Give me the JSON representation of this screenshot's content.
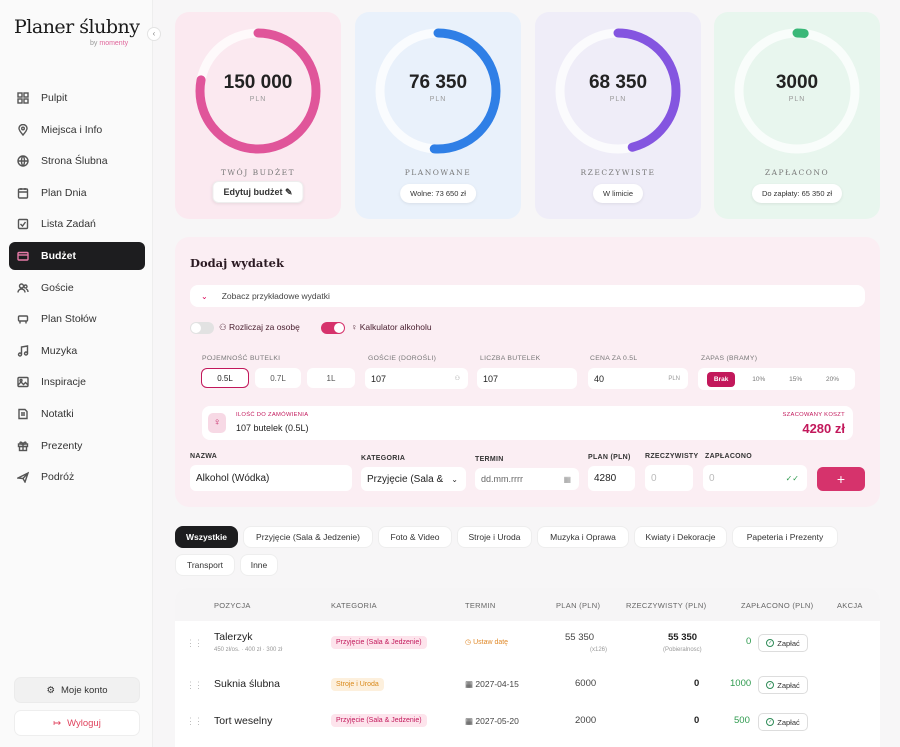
{
  "sidebar": {
    "logo": "Planer ślubny",
    "logo_by": "by",
    "logo_brand": "momenty",
    "collapse_icon": "‹",
    "items": [
      {
        "label": "Pulpit",
        "icon": "dashboard-icon"
      },
      {
        "label": "Miejsca i Info",
        "icon": "location-pin-icon"
      },
      {
        "label": "Strona Ślubna",
        "icon": "globe-icon"
      },
      {
        "label": "Plan Dnia",
        "icon": "calendar-icon"
      },
      {
        "label": "Lista Zadań",
        "icon": "checklist-icon"
      },
      {
        "label": "Budżet",
        "icon": "wallet-icon",
        "active": true
      },
      {
        "label": "Goście",
        "icon": "users-icon"
      },
      {
        "label": "Plan Stołów",
        "icon": "table-icon"
      },
      {
        "label": "Muzyka",
        "icon": "music-note-icon"
      },
      {
        "label": "Inspiracje",
        "icon": "image-icon"
      },
      {
        "label": "Notatki",
        "icon": "note-icon"
      },
      {
        "label": "Prezenty",
        "icon": "gift-icon"
      },
      {
        "label": "Podróż",
        "icon": "plane-icon"
      }
    ],
    "account_label": "Moje konto",
    "logout_label": "Wyloguj"
  },
  "cards": [
    {
      "value": "150 000",
      "unit": "PLN",
      "label": "TWÓJ BUDŻET",
      "pill": "Edytuj budżet",
      "color": "#e0559a",
      "bg": "#fbe9f0",
      "fraction": 0.78
    },
    {
      "value": "76 350",
      "unit": "PLN",
      "label": "PLANOWANE",
      "pill": "Wolne: 73 650 zł",
      "color": "#2f7fe6",
      "bg": "#e9f1fb",
      "fraction": 0.51
    },
    {
      "value": "68 350",
      "unit": "PLN",
      "label": "RZECZYWISTE",
      "pill": "W limicie",
      "color": "#8455e0",
      "bg": "#efedf8",
      "fraction": 0.46
    },
    {
      "value": "3000",
      "unit": "PLN",
      "label": "ZAPŁACONO",
      "pill": "Do zapłaty: 65 350 zł",
      "color": "#3ab878",
      "bg": "#e8f6ee",
      "fraction": 0.02
    }
  ],
  "form": {
    "title": "Dodaj wydatek",
    "examples_label": "Zobacz przykładowe wydatki",
    "per_person_label": "Rozliczaj za osobę",
    "alcohol_label": "Kalkulator alkoholu",
    "bottle_size_label": "POJEMNOŚĆ BUTELKI",
    "bottle_sizes": [
      "0.5L",
      "0.7L",
      "1L"
    ],
    "guests_label": "GOŚCIE (DOROŚLI)",
    "guests_value": "107",
    "bottles_label": "LICZBA BUTELEK",
    "bottles_value": "107",
    "price_label": "CENA ZA 0.5L",
    "price_value": "40",
    "price_unit": "PLN",
    "reserve_label": "ZAPAS (BRAMY)",
    "reserve_options": [
      "Brak",
      "10%",
      "15%",
      "20%"
    ],
    "order_small": "ILOŚĆ DO ZAMÓWIENIA",
    "order_value": "107 butelek (0.5L)",
    "cost_small": "SZACOWANY KOSZT",
    "cost_value": "4280 zł",
    "name_label": "NAZWA",
    "name_value": "Alkohol (Wódka)",
    "category_label": "KATEGORIA",
    "category_value": "Przyjęcie (Sala &",
    "term_label": "TERMIN",
    "term_placeholder": "dd.mm.rrrr",
    "plan_label": "PLAN (PLN)",
    "plan_value": "4280",
    "actual_label": "RZECZYWISTY",
    "actual_placeholder": "0",
    "paid_label": "ZAPŁACONO",
    "paid_placeholder": "0",
    "add_label": "+"
  },
  "filters": [
    "Wszystkie",
    "Przyjęcie (Sala & Jedzenie)",
    "Foto & Video",
    "Stroje i Uroda",
    "Muzyka i Oprawa",
    "Kwiaty i Dekoracje",
    "Papeteria i Prezenty",
    "Transport",
    "Inne"
  ],
  "table": {
    "headers": [
      "POZYCJA",
      "KATEGORIA",
      "TERMIN",
      "PLAN (PLN)",
      "RZECZYWISTY (PLN)",
      "ZAPŁACONO (PLN)",
      "AKCJA"
    ],
    "rows": [
      {
        "name": "Talerzyk",
        "sub": "450 zł/os. · 400 zł · 300 zł",
        "category": "Przyjęcie (Sala & Jedzenie)",
        "cat_style": "pink",
        "term": "Ustaw datę",
        "plan": "55 350",
        "plan_sub": "(x126)",
        "actual": "55 350",
        "actual_sub": "(Pobieralnosc)",
        "paid": "0",
        "pay": "Zapłać"
      },
      {
        "name": "Suknia ślubna",
        "sub": "",
        "category": "Stroje i Uroda",
        "cat_style": "orange",
        "term": "2027-04-15",
        "plan": "6000",
        "plan_sub": "",
        "actual": "0",
        "actual_sub": "",
        "paid": "1000",
        "pay": "Zapłać"
      },
      {
        "name": "Tort weselny",
        "sub": "",
        "category": "Przyjęcie (Sala & Jedzenie)",
        "cat_style": "pink",
        "term": "2027-05-20",
        "plan": "2000",
        "plan_sub": "",
        "actual": "0",
        "actual_sub": "",
        "paid": "500",
        "pay": "Zapłać"
      }
    ]
  }
}
